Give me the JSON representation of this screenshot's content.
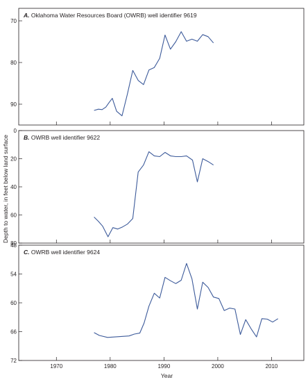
{
  "chart_data": [
    {
      "type": "line",
      "letter": "A.",
      "title": "Oklahoma Water Resources Board (OWRB) well identifier 9619",
      "ylim": [
        67,
        95
      ],
      "y_inverted": true,
      "yticks": [
        70,
        80,
        90
      ],
      "xlim": [
        1963,
        2016
      ],
      "series": [
        {
          "x": [
            1977,
            1977.8,
            1978.5,
            1979.2,
            1979.8,
            1980.4,
            1981.2,
            1982.2,
            1983.2,
            1984.2,
            1985.2,
            1986.2,
            1987.2,
            1988.2,
            1989.2,
            1990.2,
            1991.2,
            1992.2,
            1993.2,
            1994.2,
            1995.2,
            1996.2,
            1997.2,
            1998.2,
            1999.2
          ],
          "values": [
            91.5,
            91.2,
            91.3,
            90.7,
            89.6,
            88.6,
            91.7,
            92.8,
            87.6,
            81.9,
            84.3,
            85.3,
            81.8,
            81.2,
            79.0,
            73.4,
            76.8,
            75.0,
            72.6,
            74.9,
            74.4,
            74.9,
            73.3,
            73.8,
            75.3
          ]
        }
      ]
    },
    {
      "type": "line",
      "letter": "B.",
      "title": "OWRB well identifier 9622",
      "ylim": [
        0,
        80
      ],
      "y_inverted": true,
      "yticks": [
        0,
        20,
        40,
        60,
        80
      ],
      "xlim": [
        1963,
        2016
      ],
      "series": [
        {
          "x": [
            1977,
            1977.8,
            1978.6,
            1979.6,
            1980.5,
            1981.4,
            1982.3,
            1983.2,
            1984.2,
            1985.2,
            1986.2,
            1987.2,
            1988.2,
            1989.2,
            1990.2,
            1991.2,
            1992.2,
            1993.2,
            1994.2,
            1995.3,
            1996.2,
            1997.2,
            1998.2,
            1999.2
          ],
          "values": [
            61.5,
            64.5,
            68,
            75.5,
            69,
            70,
            68.5,
            66.5,
            62.5,
            29.5,
            24.5,
            15,
            18,
            18.5,
            15.5,
            18,
            18.5,
            18.5,
            18,
            21,
            36.5,
            20,
            22,
            24.5
          ]
        }
      ]
    },
    {
      "type": "line",
      "letter": "C.",
      "title": "OWRB well identifier 9624",
      "ylim": [
        48,
        72
      ],
      "y_inverted": true,
      "yticks": [
        48,
        54,
        60,
        66,
        72
      ],
      "xlim": [
        1963,
        2016
      ],
      "xticks": [
        1970,
        1980,
        1990,
        2000,
        2010
      ],
      "xlabel": "Year",
      "series": [
        {
          "x": [
            1977,
            1978,
            1979.5,
            1983.5,
            1984.5,
            1985.5,
            1986.3,
            1987.2,
            1988.2,
            1989.2,
            1990.2,
            1991.2,
            1992.2,
            1993.2,
            1994.2,
            1995.2,
            1996.2,
            1997.2,
            1998.2,
            1999.2,
            2000.2,
            2001.2,
            2002.2,
            2003.2,
            2004.2,
            2005.2,
            2006.2,
            2007.2,
            2008.2,
            2009.2,
            2010.2,
            2011.2
          ],
          "values": [
            66.2,
            66.8,
            67.2,
            66.9,
            66.5,
            66.3,
            64.2,
            60.7,
            58.0,
            59.0,
            54.7,
            55.4,
            56.0,
            55.3,
            51.8,
            55.0,
            61.3,
            55.7,
            56.8,
            58.8,
            59.1,
            61.6,
            61.1,
            61.3,
            66.6,
            63.5,
            65.4,
            67.1,
            63.3,
            63.4,
            64.0,
            63.3
          ]
        }
      ]
    }
  ],
  "shared": {
    "ylabel": "Depth to water, in feet below land surface",
    "line_color": "#3c5a9a"
  }
}
